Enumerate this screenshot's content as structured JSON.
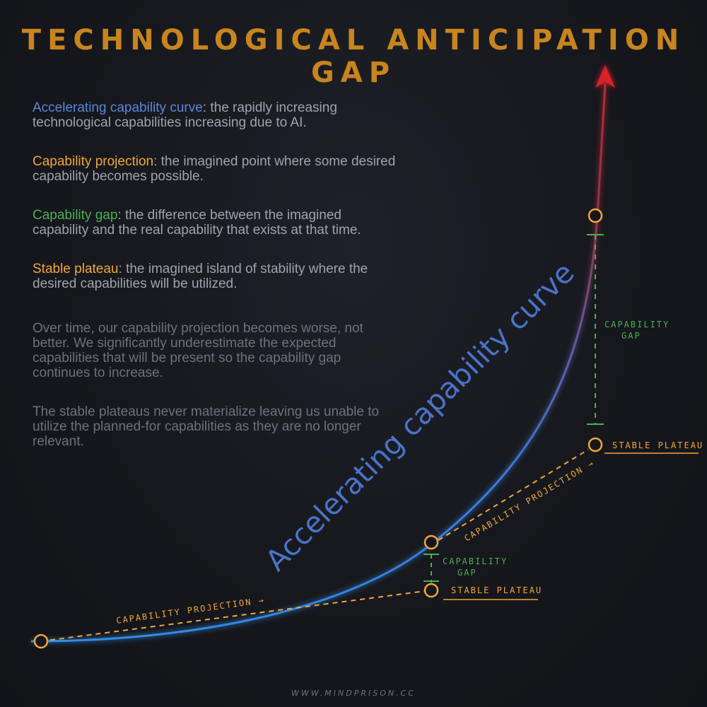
{
  "title": "TECHNOLOGICAL ANTICIPATION GAP",
  "definitions": [
    {
      "term": "Accelerating capability curve",
      "text": ": the rapidly increasing technological capabilities increasing due to AI.",
      "color": "#5b86d8"
    },
    {
      "term": "Capability projection",
      "text": ": the imagined point where some desired capability becomes possible.",
      "color": "#f2a63a"
    },
    {
      "term": "Capability gap",
      "text": ": the difference between the imagined capability and the real capability that exists at that time.",
      "color": "#4caf50"
    },
    {
      "term": "Stable plateau",
      "text": ": the imagined island of stability where the desired capabilities will be utilized.",
      "color": "#f2a63a"
    }
  ],
  "notes": [
    "Over time, our capability projection becomes worse, not better. We significantly underestimate the expected capabilities that will be present so the capability gap continues to increase.",
    "The stable plateaus never materialize leaving us unable to utilize the planned-for capabilities as they are no longer relevant."
  ],
  "diagram": {
    "curve_label": "Accelerating capability curve",
    "projection_label_1": "CAPABILITY PROJECTION →",
    "projection_label_2": "CAPABILITY PROJECTION →",
    "gap_label_line1": "CAPABILITY",
    "gap_label_line2": "GAP",
    "plateau_label": "STABLE PLATEAU",
    "colors": {
      "curve_start": "#2f8fe8",
      "curve_end": "#c0282f",
      "projection": "#f2a63a",
      "gap": "#4caf50",
      "curve_label": "#4a73c9"
    }
  },
  "footer": "WWW.MINDPRISON.CC"
}
